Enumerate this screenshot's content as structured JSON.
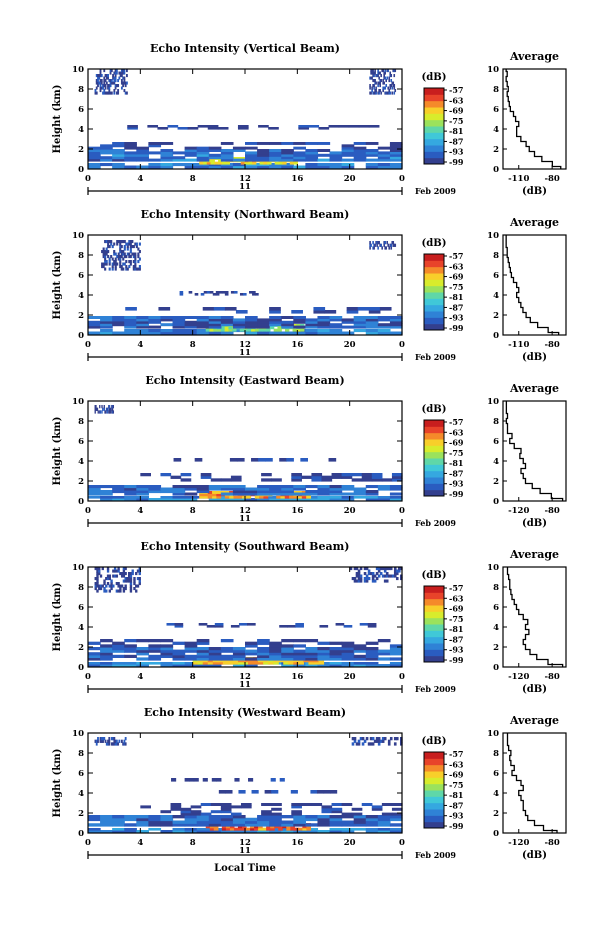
{
  "figure": {
    "bottom_xlabel": "Local Time",
    "date_label": "Feb 2009",
    "day_label": "11",
    "colorbar_unit": "(dB)",
    "colorbar_ticks": [
      "-57",
      "-63",
      "-69",
      "-75",
      "-81",
      "-87",
      "-93",
      "-99"
    ],
    "colormap": [
      "#333f8e",
      "#2a5cc0",
      "#2f82d6",
      "#35a8e0",
      "#40c8d8",
      "#5fd7a8",
      "#9be25c",
      "#d8ec2c",
      "#f8cf2a",
      "#f58a2a",
      "#e8432a",
      "#c81e1e"
    ]
  },
  "chart_data": [
    {
      "type": "heatmap",
      "title": "Echo Intensity (Vertical Beam)",
      "xlabel": "",
      "ylabel": "Height (km)",
      "xlim": [
        0,
        24
      ],
      "ylim": [
        0,
        10
      ],
      "xticks": [
        "0",
        "4",
        "8",
        "12",
        "16",
        "20",
        "0"
      ],
      "yticks": [
        "0",
        "2",
        "4",
        "6",
        "8",
        "10"
      ],
      "zlim": [
        -99,
        -57
      ],
      "bands": [
        {
          "y0": 0.1,
          "y1": 0.6,
          "x0": 0,
          "x1": 24,
          "z": -91
        },
        {
          "y0": 0.5,
          "y1": 1.2,
          "x0": 8.5,
          "x1": 16,
          "z": -70
        },
        {
          "y0": 0.8,
          "y1": 2.0,
          "x0": 0,
          "x1": 24,
          "z": -92
        },
        {
          "y0": 2.0,
          "y1": 2.7,
          "x0": 0,
          "x1": 24,
          "z": -97
        },
        {
          "y0": 4.0,
          "y1": 4.4,
          "x0": 3,
          "x1": 23,
          "z": -97
        },
        {
          "y0": 7.5,
          "y1": 10,
          "x0": 0.5,
          "x1": 3,
          "z": -97
        },
        {
          "y0": 7.5,
          "y1": 10,
          "x0": 21.5,
          "x1": 23.5,
          "z": -97
        }
      ],
      "profile": {
        "title": "Average",
        "xlabel": "(dB)",
        "xticks": [
          "-110",
          "-80"
        ],
        "xlim": [
          -125,
          -65
        ],
        "heights": [
          0,
          0.5,
          1,
          1.5,
          2,
          2.5,
          3,
          3.5,
          4,
          4.5,
          5,
          5.5,
          6,
          6.5,
          7,
          7.5,
          8,
          8.5,
          9,
          9.5,
          10
        ],
        "values": [
          -70,
          -78,
          -88,
          -95,
          -100,
          -103,
          -108,
          -112,
          -112,
          -110,
          -113,
          -115,
          -118,
          -119,
          -120,
          -121,
          -120,
          -121,
          -122,
          -121,
          -122
        ]
      }
    },
    {
      "type": "heatmap",
      "title": "Echo Intensity (Northward Beam)",
      "xlabel": "",
      "ylabel": "Height (km)",
      "xlim": [
        0,
        24
      ],
      "ylim": [
        0,
        10
      ],
      "xticks": [
        "0",
        "4",
        "8",
        "12",
        "16",
        "20",
        "0"
      ],
      "yticks": [
        "0",
        "2",
        "4",
        "6",
        "8",
        "10"
      ],
      "zlim": [
        -99,
        -57
      ],
      "bands": [
        {
          "y0": 0.1,
          "y1": 0.6,
          "x0": 0,
          "x1": 24,
          "z": -91
        },
        {
          "y0": 0.4,
          "y1": 1.1,
          "x0": 9,
          "x1": 16.5,
          "z": -78
        },
        {
          "y0": 0.7,
          "y1": 1.9,
          "x0": 0,
          "x1": 24,
          "z": -94
        },
        {
          "y0": 2.2,
          "y1": 2.8,
          "x0": 2,
          "x1": 24,
          "z": -97
        },
        {
          "y0": 4.0,
          "y1": 4.4,
          "x0": 7,
          "x1": 13,
          "z": -97
        },
        {
          "y0": 6.5,
          "y1": 9.5,
          "x0": 1,
          "x1": 4,
          "z": -97
        },
        {
          "y0": 8.6,
          "y1": 9.4,
          "x0": 21.5,
          "x1": 23.5,
          "z": -97
        }
      ],
      "profile": {
        "title": "Average",
        "xlabel": "(dB)",
        "xticks": [
          "-110",
          "-80"
        ],
        "xlim": [
          -125,
          -65
        ],
        "heights": [
          0,
          0.5,
          1,
          1.5,
          2,
          2.5,
          3,
          3.5,
          4,
          4.5,
          5,
          5.5,
          6,
          6.5,
          7,
          7.5,
          8,
          8.5,
          9,
          9.5,
          10
        ],
        "values": [
          -72,
          -82,
          -92,
          -99,
          -103,
          -106,
          -108,
          -110,
          -112,
          -110,
          -112,
          -115,
          -117,
          -118,
          -119,
          -120,
          -121,
          -121,
          -122,
          -122,
          -122
        ]
      }
    },
    {
      "type": "heatmap",
      "title": "Echo Intensity (Eastward Beam)",
      "xlabel": "",
      "ylabel": "Height (km)",
      "xlim": [
        0,
        24
      ],
      "ylim": [
        0,
        10
      ],
      "xticks": [
        "0",
        "4",
        "8",
        "12",
        "16",
        "20",
        "0"
      ],
      "yticks": [
        "0",
        "2",
        "4",
        "6",
        "8",
        "10"
      ],
      "zlim": [
        -99,
        -57
      ],
      "bands": [
        {
          "y0": 0.1,
          "y1": 0.5,
          "x0": 0,
          "x1": 24,
          "z": -90
        },
        {
          "y0": 0.3,
          "y1": 1.0,
          "x0": 8.5,
          "x1": 17,
          "z": -66
        },
        {
          "y0": 0.6,
          "y1": 1.6,
          "x0": 0,
          "x1": 24,
          "z": -93
        },
        {
          "y0": 2.0,
          "y1": 2.8,
          "x0": 4,
          "x1": 24,
          "z": -97
        },
        {
          "y0": 4.0,
          "y1": 4.3,
          "x0": 6,
          "x1": 20,
          "z": -97
        },
        {
          "y0": 8.8,
          "y1": 9.6,
          "x0": 0.5,
          "x1": 2,
          "z": -97
        }
      ],
      "profile": {
        "title": "Average",
        "xlabel": "(dB)",
        "xticks": [
          "-120",
          "-80"
        ],
        "xlim": [
          -128,
          -72
        ],
        "heights": [
          0,
          0.5,
          1,
          1.5,
          2,
          2.5,
          3,
          3.5,
          4,
          4.5,
          5,
          5.5,
          6,
          6.5,
          7,
          7.5,
          8,
          8.5,
          9,
          9.5,
          10
        ],
        "values": [
          -75,
          -85,
          -95,
          -102,
          -108,
          -110,
          -112,
          -108,
          -110,
          -113,
          -112,
          -118,
          -122,
          -120,
          -124,
          -124,
          -125,
          -124,
          -125,
          -125,
          -125
        ]
      }
    },
    {
      "type": "heatmap",
      "title": "Echo Intensity (Southward Beam)",
      "xlabel": "",
      "ylabel": "Height (km)",
      "xlim": [
        0,
        24
      ],
      "ylim": [
        0,
        10
      ],
      "xticks": [
        "0",
        "4",
        "8",
        "12",
        "16",
        "20",
        "0"
      ],
      "yticks": [
        "0",
        "2",
        "4",
        "6",
        "8",
        "10"
      ],
      "zlim": [
        -99,
        -57
      ],
      "bands": [
        {
          "y0": 0.1,
          "y1": 0.5,
          "x0": 0,
          "x1": 24,
          "z": -90
        },
        {
          "y0": 0.3,
          "y1": 1.0,
          "x0": 8,
          "x1": 18,
          "z": -68
        },
        {
          "y0": 0.7,
          "y1": 2.0,
          "x0": 0,
          "x1": 24,
          "z": -93
        },
        {
          "y0": 2.0,
          "y1": 2.8,
          "x0": 0,
          "x1": 24,
          "z": -97
        },
        {
          "y0": 4.0,
          "y1": 4.4,
          "x0": 6,
          "x1": 22,
          "z": -97
        },
        {
          "y0": 7.5,
          "y1": 10,
          "x0": 0.5,
          "x1": 4,
          "z": -97
        },
        {
          "y0": 8.5,
          "y1": 10,
          "x0": 20,
          "x1": 24,
          "z": -97
        }
      ],
      "profile": {
        "title": "Average",
        "xlabel": "(dB)",
        "xticks": [
          "-120",
          "-80"
        ],
        "xlim": [
          -128,
          -72
        ],
        "heights": [
          0,
          0.5,
          1,
          1.5,
          2,
          2.5,
          3,
          3.5,
          4,
          4.5,
          5,
          5.5,
          6,
          6.5,
          7,
          7.5,
          8,
          8.5,
          9,
          9.5,
          10
        ],
        "values": [
          -75,
          -88,
          -98,
          -104,
          -108,
          -110,
          -108,
          -105,
          -108,
          -106,
          -110,
          -114,
          -116,
          -118,
          -120,
          -121,
          -122,
          -122,
          -123,
          -124,
          -124
        ]
      }
    },
    {
      "type": "heatmap",
      "title": "Echo Intensity (Westward Beam)",
      "xlabel": "Local Time",
      "ylabel": "Height (km)",
      "xlim": [
        0,
        24
      ],
      "ylim": [
        0,
        10
      ],
      "xticks": [
        "0",
        "4",
        "8",
        "12",
        "16",
        "20",
        "0"
      ],
      "yticks": [
        "0",
        "2",
        "4",
        "6",
        "8",
        "10"
      ],
      "zlim": [
        -99,
        -57
      ],
      "bands": [
        {
          "y0": 0.1,
          "y1": 0.5,
          "x0": 0,
          "x1": 24,
          "z": -90
        },
        {
          "y0": 0.3,
          "y1": 1.0,
          "x0": 9,
          "x1": 17,
          "z": -64
        },
        {
          "y0": 0.7,
          "y1": 1.8,
          "x0": 0,
          "x1": 24,
          "z": -93
        },
        {
          "y0": 1.8,
          "y1": 3.0,
          "x0": 4,
          "x1": 24,
          "z": -97
        },
        {
          "y0": 4.0,
          "y1": 4.3,
          "x0": 7,
          "x1": 20,
          "z": -97
        },
        {
          "y0": 5.2,
          "y1": 5.5,
          "x0": 6,
          "x1": 15,
          "z": -97
        },
        {
          "y0": 8.8,
          "y1": 9.6,
          "x0": 0.5,
          "x1": 3,
          "z": -97
        },
        {
          "y0": 8.8,
          "y1": 9.6,
          "x0": 20,
          "x1": 24,
          "z": -97
        }
      ],
      "profile": {
        "title": "Average",
        "xlabel": "(dB)",
        "xticks": [
          "-120",
          "-80"
        ],
        "xlim": [
          -128,
          -72
        ],
        "heights": [
          0,
          0.5,
          1,
          1.5,
          2,
          2.5,
          3,
          3.5,
          4,
          4.5,
          5,
          5.5,
          6,
          6.5,
          7,
          7.5,
          8,
          8.5,
          9,
          9.5,
          10
        ],
        "values": [
          -80,
          -92,
          -100,
          -106,
          -108,
          -110,
          -110,
          -112,
          -114,
          -110,
          -112,
          -116,
          -120,
          -118,
          -121,
          -122,
          -121,
          -123,
          -124,
          -124,
          -124
        ]
      }
    }
  ]
}
